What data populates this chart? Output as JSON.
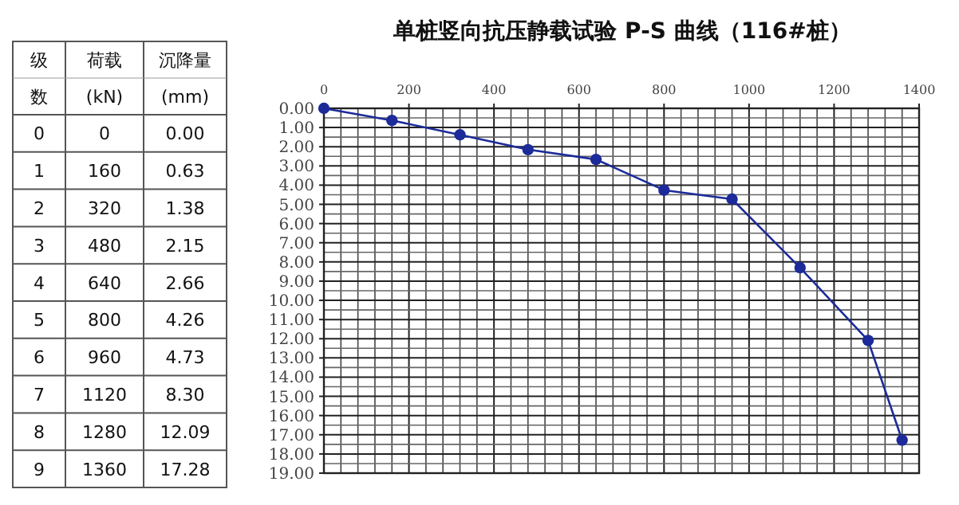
{
  "chart_data": {
    "type": "line",
    "title": "单桩竖向抗压静载试验 P-S 曲线（116#桩）",
    "x": [
      0,
      160,
      320,
      480,
      640,
      800,
      960,
      1120,
      1280,
      1360
    ],
    "series": [
      {
        "color": "#1c2b99",
        "values": [
          0,
          0.63,
          1.38,
          2.15,
          2.66,
          4.26,
          4.73,
          8.3,
          12.09,
          17.28
        ]
      }
    ],
    "xlim": [
      0,
      1400
    ],
    "xticks": [
      0,
      200,
      400,
      600,
      800,
      1000,
      1200,
      1400
    ],
    "ylim": [
      19,
      0
    ],
    "yticks": [
      {
        "value": 0,
        "label": "0.00"
      },
      {
        "value": 1,
        "label": "1.00"
      },
      {
        "value": 2,
        "label": "2.00"
      },
      {
        "value": 3,
        "label": "3.00"
      },
      {
        "value": 4,
        "label": "4.00"
      },
      {
        "value": 5,
        "label": "5.00"
      },
      {
        "value": 6,
        "label": "6.00"
      },
      {
        "value": 7,
        "label": "7.00"
      },
      {
        "value": 8,
        "label": "8.00"
      },
      {
        "value": 9,
        "label": "9.00"
      },
      {
        "value": 10,
        "label": "10.00"
      },
      {
        "value": 11,
        "label": "11.00"
      },
      {
        "value": 12,
        "label": "12.00"
      },
      {
        "value": 13,
        "label": "13.00"
      },
      {
        "value": 14,
        "label": "14.00"
      },
      {
        "value": 15,
        "label": "15.00"
      },
      {
        "value": 16,
        "label": "16.00"
      },
      {
        "value": 17,
        "label": "17.00"
      },
      {
        "value": 18,
        "label": "18.00"
      },
      {
        "value": 19,
        "label": "19.00"
      }
    ],
    "grid": true,
    "marker": "circle",
    "line_style": "solid",
    "annotations": [
      "级数",
      "荷载 (kN)",
      "沉降量 (mm)",
      "0",
      "0",
      "0.00",
      "1",
      "160",
      "0.63",
      "2",
      "320",
      "1.38",
      "3",
      "480",
      "2.15",
      "4",
      "640",
      "2.66",
      "5",
      "800",
      "4.26",
      "6",
      "960",
      "4.73",
      "7",
      "1120",
      "8.30",
      "8",
      "1280",
      "12.09",
      "9",
      "1360",
      "17.28"
    ]
  }
}
